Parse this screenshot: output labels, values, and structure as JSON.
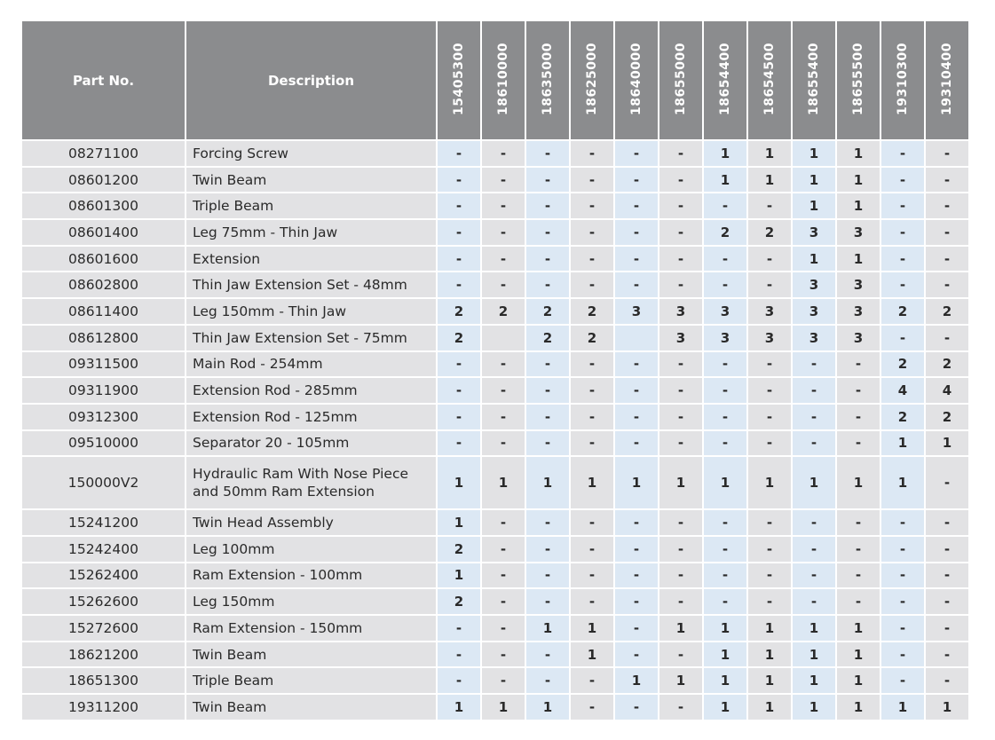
{
  "table": {
    "headers": {
      "part_no": "Part No.",
      "description": "Description"
    },
    "kits": [
      "15405300",
      "18610000",
      "18635000",
      "18625000",
      "18640000",
      "18655000",
      "18654400",
      "18654500",
      "18655400",
      "18655500",
      "19310300",
      "19310400"
    ],
    "colors": {
      "header_bg": "#8b8c8e",
      "col_blue": "#dce8f4",
      "col_gray": "#e2e2e4"
    },
    "rows": [
      {
        "part": "08271100",
        "desc": "Forcing Screw",
        "q": [
          "-",
          "-",
          "-",
          "-",
          "-",
          "-",
          "1",
          "1",
          "1",
          "1",
          "-",
          "-"
        ]
      },
      {
        "part": "08601200",
        "desc": "Twin Beam",
        "q": [
          "-",
          "-",
          "-",
          "-",
          "-",
          "-",
          "1",
          "1",
          "1",
          "1",
          "-",
          "-"
        ]
      },
      {
        "part": "08601300",
        "desc": "Triple Beam",
        "q": [
          "-",
          "-",
          "-",
          "-",
          "-",
          "-",
          "-",
          "-",
          "1",
          "1",
          "-",
          "-"
        ]
      },
      {
        "part": "08601400",
        "desc": "Leg 75mm - Thin Jaw",
        "q": [
          "-",
          "-",
          "-",
          "-",
          "-",
          "-",
          "2",
          "2",
          "3",
          "3",
          "-",
          "-"
        ]
      },
      {
        "part": "08601600",
        "desc": "Extension",
        "q": [
          "-",
          "-",
          "-",
          "-",
          "-",
          "-",
          "-",
          "-",
          "1",
          "1",
          "-",
          "-"
        ]
      },
      {
        "part": "08602800",
        "desc": "Thin Jaw Extension Set - 48mm",
        "q": [
          "-",
          "-",
          "-",
          "-",
          "-",
          "-",
          "-",
          "-",
          "3",
          "3",
          "-",
          "-"
        ]
      },
      {
        "part": "08611400",
        "desc": "Leg 150mm - Thin Jaw",
        "q": [
          "2",
          "2",
          "2",
          "2",
          "3",
          "3",
          "3",
          "3",
          "3",
          "3",
          "2",
          "2"
        ]
      },
      {
        "part": "08612800",
        "desc": "Thin Jaw Extension Set - 75mm",
        "q": [
          "2",
          "",
          "2",
          "2",
          "",
          "3",
          "3",
          "3",
          "3",
          "3",
          "-",
          "-"
        ]
      },
      {
        "part": "09311500",
        "desc": "Main Rod - 254mm",
        "q": [
          "-",
          "-",
          "-",
          "-",
          "-",
          "-",
          "-",
          "-",
          "-",
          "-",
          "2",
          "2"
        ]
      },
      {
        "part": "09311900",
        "desc": "Extension Rod - 285mm",
        "q": [
          "-",
          "-",
          "-",
          "-",
          "-",
          "-",
          "-",
          "-",
          "-",
          "-",
          "4",
          "4"
        ]
      },
      {
        "part": "09312300",
        "desc": "Extension Rod - 125mm",
        "q": [
          "-",
          "-",
          "-",
          "-",
          "-",
          "-",
          "-",
          "-",
          "-",
          "-",
          "2",
          "2"
        ]
      },
      {
        "part": "09510000",
        "desc": "Separator 20 - 105mm",
        "q": [
          "-",
          "-",
          "-",
          "-",
          "-",
          "-",
          "-",
          "-",
          "-",
          "-",
          "1",
          "1"
        ]
      },
      {
        "part": "150000V2",
        "desc": "Hydraulic Ram With Nose Piece\nand 50mm Ram Extension",
        "q": [
          "1",
          "1",
          "1",
          "1",
          "1",
          "1",
          "1",
          "1",
          "1",
          "1",
          "1",
          "-"
        ]
      },
      {
        "part": "15241200",
        "desc": "Twin Head Assembly",
        "q": [
          "1",
          "-",
          "-",
          "-",
          "-",
          "-",
          "-",
          "-",
          "-",
          "-",
          "-",
          "-"
        ]
      },
      {
        "part": "15242400",
        "desc": "Leg 100mm",
        "q": [
          "2",
          "-",
          "-",
          "-",
          "-",
          "-",
          "-",
          "-",
          "-",
          "-",
          "-",
          "-"
        ]
      },
      {
        "part": "15262400",
        "desc": "Ram Extension - 100mm",
        "q": [
          "1",
          "-",
          "-",
          "-",
          "-",
          "-",
          "-",
          "-",
          "-",
          "-",
          "-",
          "-"
        ]
      },
      {
        "part": "15262600",
        "desc": "Leg 150mm",
        "q": [
          "2",
          "-",
          "-",
          "-",
          "-",
          "-",
          "-",
          "-",
          "-",
          "-",
          "-",
          "-"
        ]
      },
      {
        "part": "15272600",
        "desc": "Ram Extension - 150mm",
        "q": [
          "-",
          "-",
          "1",
          "1",
          "-",
          "1",
          "1",
          "1",
          "1",
          "1",
          "-",
          "-"
        ]
      },
      {
        "part": "18621200",
        "desc": "Twin Beam",
        "q": [
          "-",
          "-",
          "-",
          "1",
          "-",
          "-",
          "1",
          "1",
          "1",
          "1",
          "-",
          "-"
        ]
      },
      {
        "part": "18651300",
        "desc": "Triple Beam",
        "q": [
          "-",
          "-",
          "-",
          "-",
          "1",
          "1",
          "1",
          "1",
          "1",
          "1",
          "-",
          "-"
        ]
      },
      {
        "part": "19311200",
        "desc": "Twin Beam",
        "q": [
          "1",
          "1",
          "1",
          "-",
          "-",
          "-",
          "1",
          "1",
          "1",
          "1",
          "1",
          "1"
        ]
      }
    ]
  }
}
